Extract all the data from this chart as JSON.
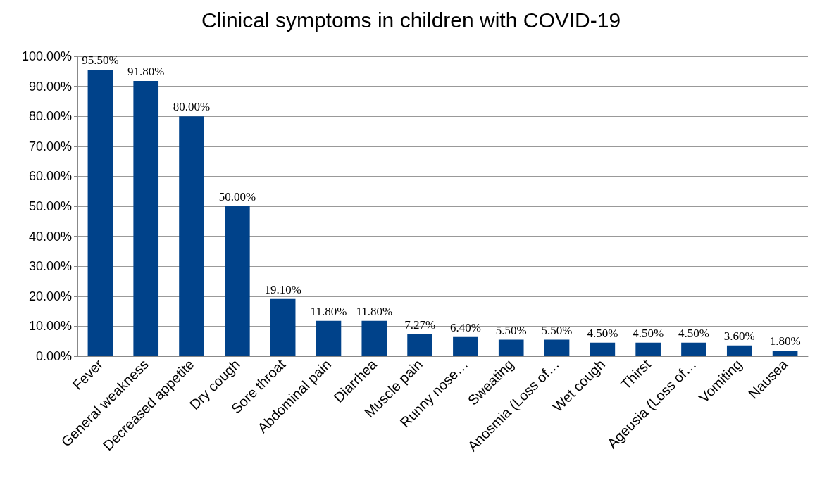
{
  "chart_data": {
    "type": "bar",
    "title": "Clinical symptoms in children with COVID-19",
    "categories": [
      "Fever",
      "General weakness",
      "Decreased appetite",
      "Dry cough",
      "Sore throat",
      "Abdominal pain",
      "Diarrhea",
      "Muscle pain",
      "Runny nose…",
      "Sweating",
      "Anosmia (Loss of…",
      "Wet cough",
      "Thirst",
      "Ageusia (Loss of…",
      "Vomiting",
      "Nausea"
    ],
    "values": [
      95.5,
      91.8,
      80,
      50,
      19.1,
      11.8,
      11.8,
      7.27,
      6.4,
      5.5,
      5.5,
      4.5,
      4.5,
      4.5,
      3.6,
      1.8
    ],
    "value_labels": [
      "95.50%",
      "91.80%",
      "80.00%",
      "50.00%",
      "19.10%",
      "11.80%",
      "11.80%",
      "7.27%",
      "6.40%",
      "5.50%",
      "5.50%",
      "4.50%",
      "4.50%",
      "4.50%",
      "3.60%",
      "1.80%"
    ],
    "color": "#00428a",
    "ylim": [
      0,
      100
    ],
    "yticks": [
      {
        "value": 0,
        "label": "0.00%"
      },
      {
        "value": 10,
        "label": "10.00%"
      },
      {
        "value": 20,
        "label": "20.00%"
      },
      {
        "value": 30,
        "label": "30.00%"
      },
      {
        "value": 40,
        "label": "40.00%"
      },
      {
        "value": 50,
        "label": "50.00%"
      },
      {
        "value": 60,
        "label": "60.00%"
      },
      {
        "value": 70,
        "label": "70.00%"
      },
      {
        "value": 80,
        "label": "80.00%"
      },
      {
        "value": 90,
        "label": "90.00%"
      },
      {
        "value": 100,
        "label": "100.00%"
      }
    ],
    "grid": true
  }
}
